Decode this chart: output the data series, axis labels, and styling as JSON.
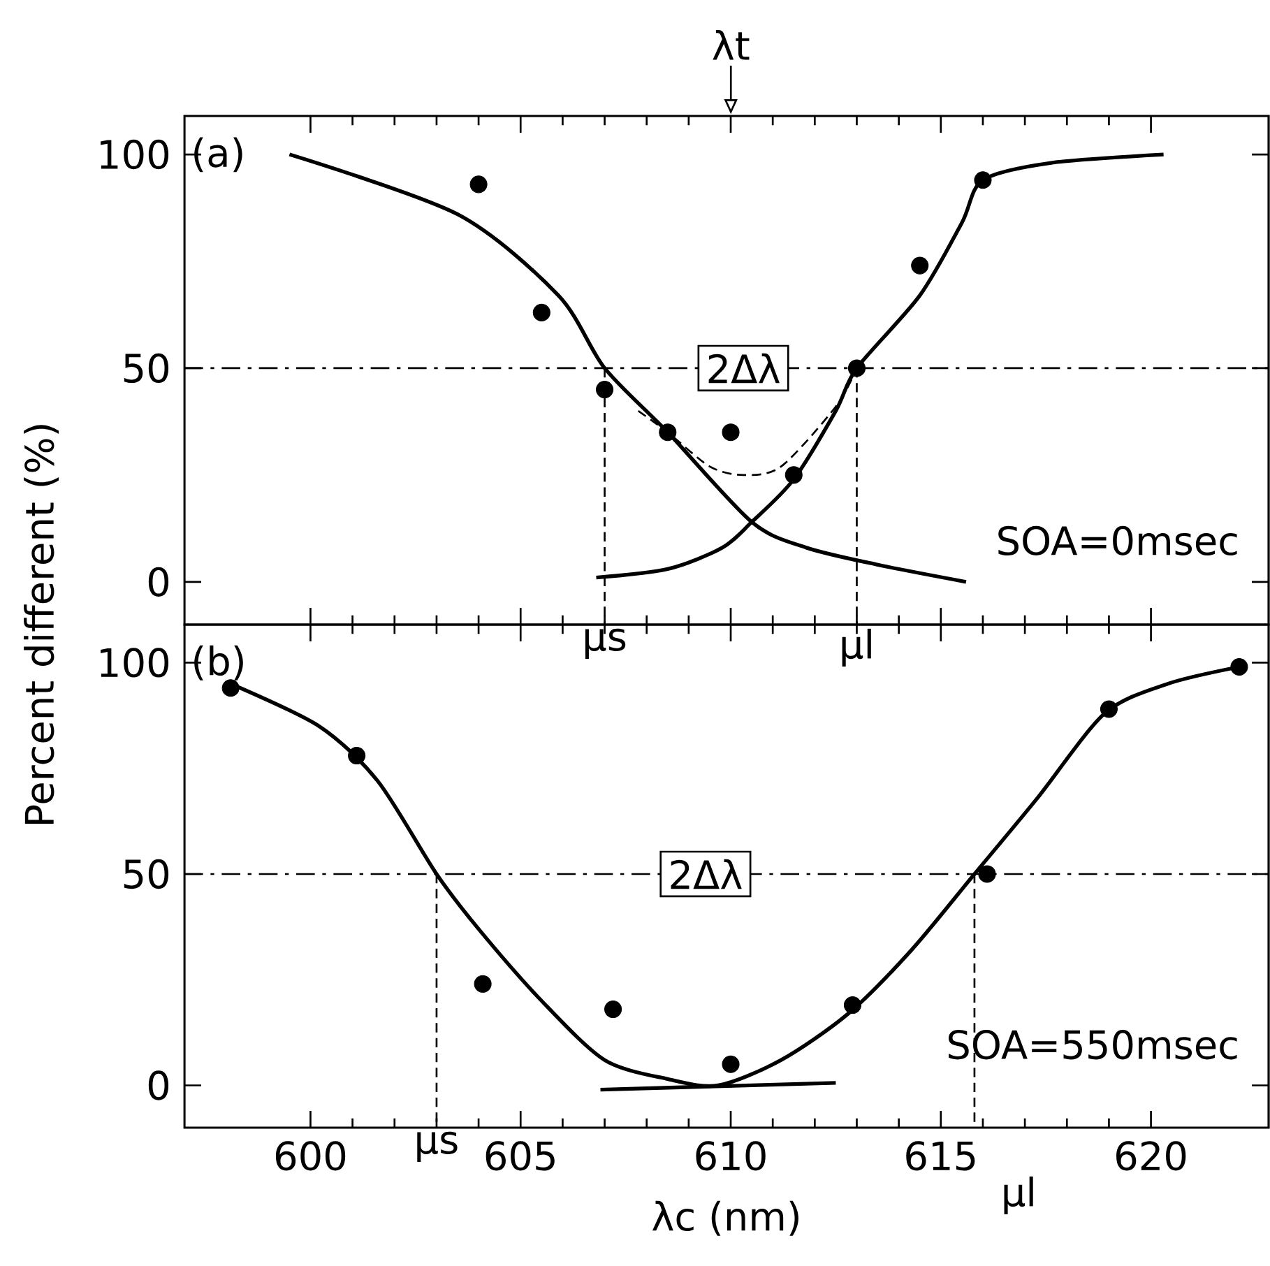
{
  "chart_data": [
    {
      "type": "line",
      "title": "(a)",
      "ylabel": "Percent different  (%)",
      "xlim": [
        597,
        622.8
      ],
      "ylim": [
        -10,
        109
      ],
      "xticks": [
        600,
        605,
        610,
        615,
        620
      ],
      "yticks": [
        0,
        50,
        100
      ],
      "tick_labels": "y",
      "grid": false,
      "series": [
        {
          "type": "scatter",
          "marker": "circle",
          "color": "#000000",
          "x": [
            604.0,
            605.5,
            607.0,
            608.5,
            610.0,
            611.5,
            613.0,
            614.5,
            616.0
          ],
          "values": [
            93,
            63,
            45,
            35,
            35,
            25,
            50,
            74,
            94
          ]
        },
        {
          "marker": "none",
          "line_style": "solid",
          "color": "#000000",
          "x": [
            599.5,
            603.5,
            605.9,
            607.0,
            608.5,
            610.5,
            611.8,
            613.5,
            615.6
          ],
          "values": [
            100,
            86,
            67,
            50,
            35,
            14,
            8,
            4,
            0
          ]
        },
        {
          "marker": "none",
          "line_style": "solid",
          "color": "#000000",
          "x": [
            606.8,
            608.5,
            609.8,
            610.5,
            611.5,
            612.5,
            613.0,
            614.5,
            615.5,
            616.0,
            617.6,
            620.3
          ],
          "values": [
            1,
            3,
            8,
            14,
            24,
            40,
            50,
            67,
            84,
            94,
            98,
            100
          ]
        },
        {
          "marker": "none",
          "line_style": "dashed",
          "color": "#000000",
          "x": [
            607.8,
            608.5,
            609.5,
            610.3,
            611.2,
            612.5,
            613.0
          ],
          "values": [
            40,
            35,
            27,
            25,
            27,
            41,
            50
          ]
        }
      ],
      "ref_lines": [
        {
          "axis": "y",
          "value": 50,
          "line_style": "dashdot"
        },
        {
          "axis": "x",
          "value": 607.0,
          "label": "μs",
          "line_style": "dashed"
        },
        {
          "axis": "x",
          "value": 613.0,
          "label": "μl",
          "line_style": "dashed"
        }
      ],
      "annotations": [
        {
          "text": "2Δλ",
          "x": 610.3,
          "y": 50
        },
        "λt",
        "SOA=0msec"
      ]
    },
    {
      "type": "line",
      "title": "(b)",
      "xlabel": "λc  (nm)",
      "xlim": [
        597,
        622.8
      ],
      "ylim": [
        -10,
        109
      ],
      "xticks": [
        600,
        605,
        610,
        615,
        620
      ],
      "yticks": [
        0,
        50,
        100
      ],
      "grid": false,
      "series": [
        {
          "type": "scatter",
          "marker": "circle",
          "color": "#000000",
          "x": [
            598.1,
            601.1,
            604.1,
            607.2,
            610.0,
            612.9,
            616.1,
            619.0,
            622.1
          ],
          "values": [
            94,
            78,
            24,
            18,
            5,
            19,
            50,
            89,
            99
          ]
        },
        {
          "marker": "none",
          "line_style": "solid",
          "color": "#000000",
          "x": [
            598.1,
            600.2,
            601.6,
            603.0,
            604.0,
            605.5,
            607.0,
            608.5,
            609.7,
            611.2,
            612.8,
            614.3,
            615.8,
            617.3,
            618.9,
            620.4,
            622.1
          ],
          "values": [
            95,
            85,
            72,
            50,
            37,
            20,
            6,
            1.5,
            0,
            6,
            17,
            32,
            50,
            68,
            88,
            95,
            99
          ]
        },
        {
          "marker": "none",
          "line_style": "solid",
          "color": "#000000",
          "x": [
            606.9,
            612.5
          ],
          "values": [
            -1,
            0.6
          ]
        }
      ],
      "ref_lines": [
        {
          "axis": "y",
          "value": 50,
          "line_style": "dashdot"
        },
        {
          "axis": "x",
          "value": 603.0,
          "label": "μs",
          "line_style": "dashed"
        },
        {
          "axis": "x",
          "value": 615.8,
          "label": "μl",
          "line_style": "dashed"
        }
      ],
      "annotations": [
        {
          "text": "2Δλ",
          "x": 609.4,
          "y": 50
        },
        "SOA=550msec"
      ]
    }
  ]
}
